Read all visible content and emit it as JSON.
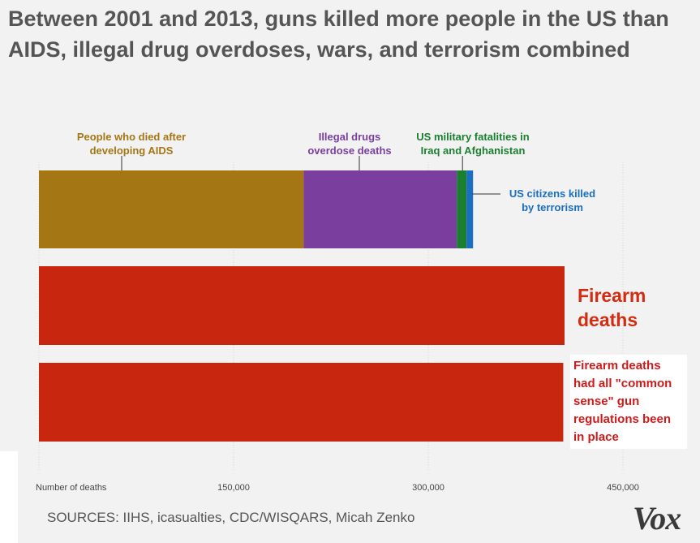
{
  "title": "Between 2001 and 2013, guns killed more people in the US than AIDS, illegal drug overdoses, wars, and terrorism combined",
  "sources": "SOURCES: IIHS, icasualties, CDC/WISQARS, Micah Zenko",
  "logo": "Vox",
  "callout": "Firearm deaths had all \"common sense\" gun regulations been in place",
  "colors": {
    "aids": "#a57614",
    "drugs": "#7a3f9e",
    "military": "#1a7f2f",
    "terrorism": "#1a6fc0",
    "firearm": "#c8260e",
    "label_firearm": "#d52b10",
    "grid": "#d3d3d3"
  },
  "chart_data": {
    "type": "bar",
    "orientation": "horizontal",
    "stacked": true,
    "title": "Between 2001 and 2013, guns killed more people in the US than AIDS, illegal drug overdoses, wars, and terrorism combined",
    "xlabel": "Number of deaths",
    "xlim": [
      0,
      450000
    ],
    "x_ticks": [
      {
        "value": 0,
        "label": "Number of deaths"
      },
      {
        "value": 150000,
        "label": "150,000"
      },
      {
        "value": 300000,
        "label": "300,000"
      },
      {
        "value": 450000,
        "label": "450,000"
      }
    ],
    "grid": true,
    "bars": [
      {
        "name": "combined",
        "segments": [
          {
            "key": "aids",
            "label": "People who died after developing AIDS",
            "value": 204000
          },
          {
            "key": "drugs",
            "label": "Illegal drugs overdose deaths",
            "value": 118000
          },
          {
            "key": "military",
            "label": "US military fatalities in Iraq and Afghanistan",
            "value": 7500
          },
          {
            "key": "terrorism",
            "label": "US citizens killed by terrorism",
            "value": 5000
          }
        ]
      },
      {
        "name": "firearm",
        "segments": [
          {
            "key": "firearm",
            "label": "Firearm deaths",
            "value": 405000
          }
        ]
      },
      {
        "name": "firearm_regulated",
        "segments": [
          {
            "key": "firearm",
            "label": "Firearm deaths had all \"common sense\" gun regulations been in place",
            "value": 404000
          }
        ]
      }
    ]
  }
}
